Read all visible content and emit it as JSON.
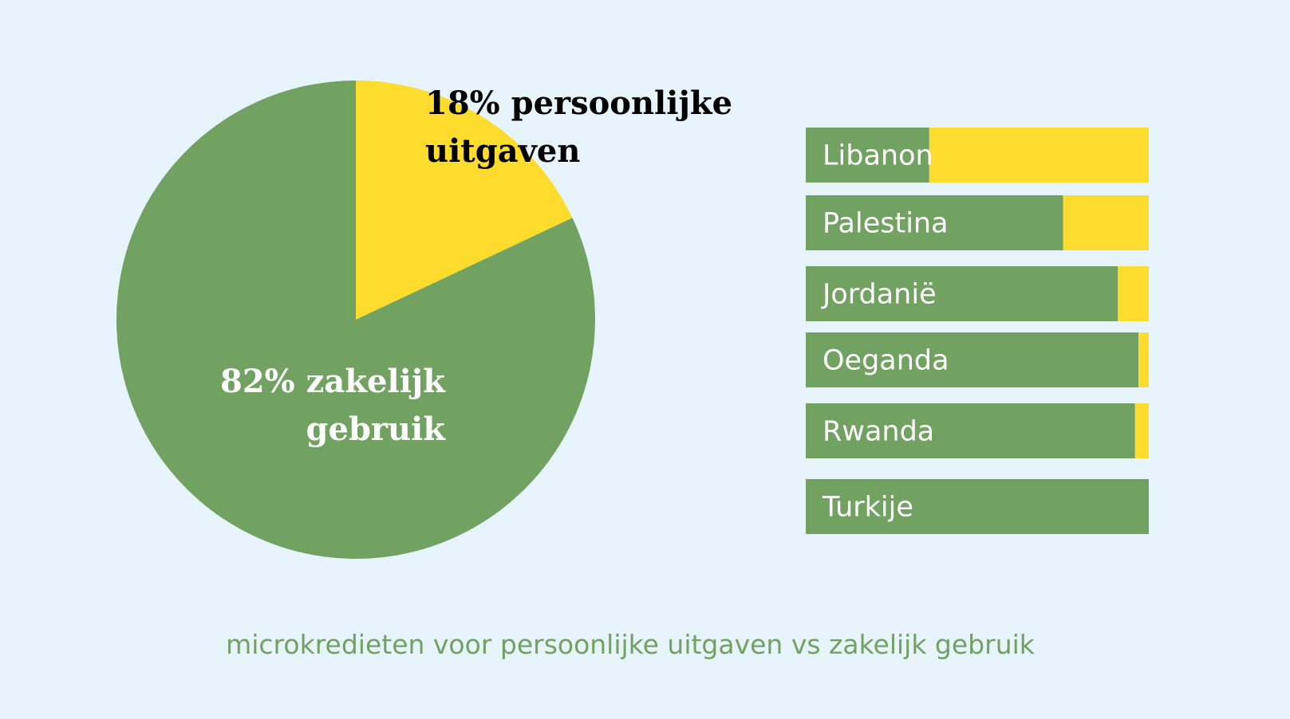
{
  "chart_data": [
    {
      "type": "pie",
      "slices": [
        {
          "key": "personal",
          "label_lines": [
            "18% persoonlijke",
            "uitgaven"
          ],
          "value": 18,
          "color": "#fddc2d",
          "text_color": "#000000"
        },
        {
          "key": "business",
          "label_lines": [
            "82% zakelijk",
            "gebruik"
          ],
          "value": 82,
          "color": "#71a261",
          "text_color": "#ffffff"
        }
      ]
    },
    {
      "type": "bar",
      "orientation": "horizontal",
      "stacked": true,
      "percent_scale": true,
      "categories": [
        "Libanon",
        "Palestina",
        "Jordanië",
        "Oeganda",
        "Rwanda",
        "Turkije"
      ],
      "series": [
        {
          "key": "business",
          "color": "#71a261",
          "values": [
            36,
            75,
            91,
            97,
            96,
            100
          ]
        },
        {
          "key": "personal",
          "color": "#fddc2d",
          "values": [
            64,
            25,
            9,
            3,
            4,
            0
          ]
        }
      ]
    }
  ],
  "caption": "microkredieten voor persoonlijke uitgaven vs zakelijk gebruik",
  "colors": {
    "background": "#e7f4fc",
    "caption": "#71a261"
  }
}
